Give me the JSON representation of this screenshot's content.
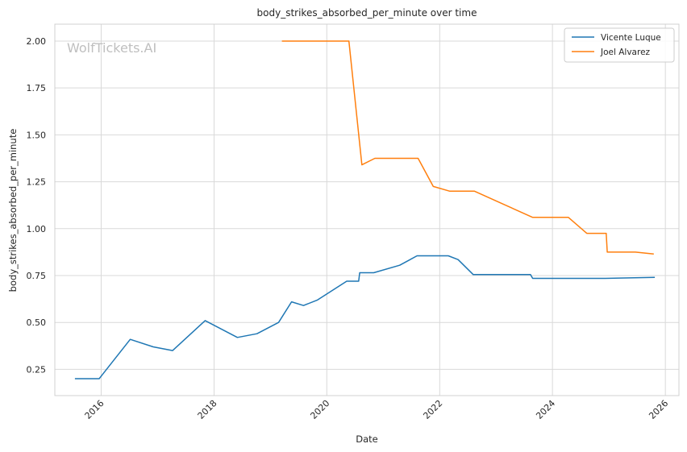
{
  "chart_data": {
    "type": "line",
    "title": "body_strikes_absorbed_per_minute over time",
    "xlabel": "Date",
    "ylabel": "body_strikes_absorbed_per_minute",
    "watermark": "WolfTickets.AI",
    "x_ticks": [
      "2016",
      "2018",
      "2020",
      "2022",
      "2024",
      "2026"
    ],
    "y_ticks": [
      "0.25",
      "0.50",
      "0.75",
      "1.00",
      "1.25",
      "1.50",
      "1.75",
      "2.00"
    ],
    "xlim": [
      "2015-03-07",
      "2026-03-30"
    ],
    "ylim": [
      0.11,
      2.09
    ],
    "grid": true,
    "legend_position": "top-right",
    "series": [
      {
        "name": "Vicente Luque",
        "color": "#1f77b4",
        "x": [
          "2015-07-15",
          "2015-12-19",
          "2016-07-07",
          "2016-12-03",
          "2017-04-08",
          "2017-11-04",
          "2018-06-01",
          "2018-10-06",
          "2019-02-23",
          "2019-05-18",
          "2019-08-03",
          "2019-11-02",
          "2020-05-09",
          "2020-07-25",
          "2020-08-01",
          "2020-10-31",
          "2021-04-17",
          "2021-08-07",
          "2022-02-26",
          "2022-04-30",
          "2022-08-06",
          "2023-08-12",
          "2023-08-26",
          "2024-06-29",
          "2024-12-07",
          "2025-10-25"
        ],
        "values": [
          0.2,
          0.2,
          0.41,
          0.37,
          0.35,
          0.51,
          0.42,
          0.44,
          0.5,
          0.61,
          0.59,
          0.62,
          0.72,
          0.72,
          0.765,
          0.765,
          0.805,
          0.855,
          0.855,
          0.835,
          0.755,
          0.755,
          0.735,
          0.735,
          0.735,
          0.74
        ]
      },
      {
        "name": "Joel Alvarez",
        "color": "#ff7f0e",
        "x": [
          "2019-03-16",
          "2020-05-23",
          "2020-08-15",
          "2020-11-07",
          "2021-08-14",
          "2021-11-20",
          "2022-03-05",
          "2022-08-13",
          "2023-08-26",
          "2024-04-13",
          "2024-08-10",
          "2024-12-14",
          "2024-12-21",
          "2025-06-21",
          "2025-10-18"
        ],
        "values": [
          2.0,
          2.0,
          1.34,
          1.375,
          1.375,
          1.225,
          1.2,
          1.2,
          1.06,
          1.06,
          0.975,
          0.975,
          0.875,
          0.875,
          0.865
        ]
      }
    ]
  }
}
